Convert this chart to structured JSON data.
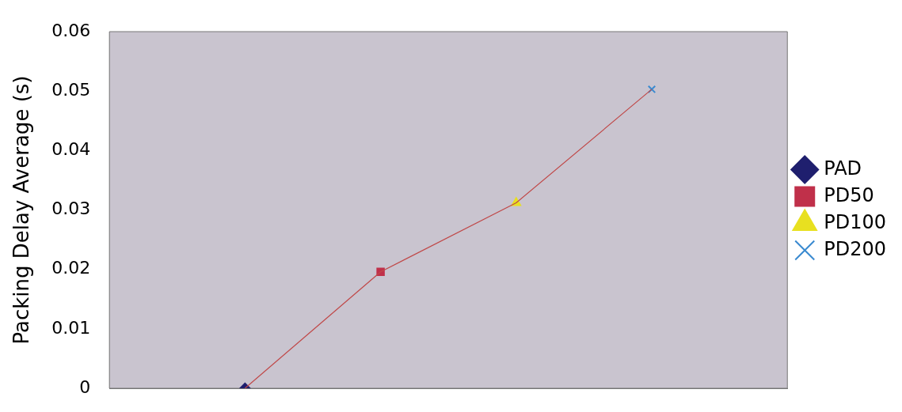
{
  "chart_data": {
    "type": "line",
    "ylabel": "Packing Delay Average (s)",
    "categories": [
      null,
      null,
      null,
      null
    ],
    "ylim": [
      0,
      0.06
    ],
    "yticks": [
      0,
      0.01,
      0.02,
      0.03,
      0.04,
      0.05,
      0.06
    ],
    "grid": false,
    "legend": "right",
    "tick_labels": "y",
    "series": [
      {
        "color": "#c04848",
        "values": [
          0,
          0.0196,
          0.0312,
          0.0503
        ],
        "marker": "none"
      },
      {
        "name": "PAD",
        "type": "scatter",
        "color": "#1f1f6e",
        "marker": "diamond",
        "values": [
          0,
          null,
          null,
          null
        ]
      },
      {
        "name": "PD50",
        "type": "scatter",
        "color": "#c0304a",
        "marker": "square",
        "values": [
          null,
          0.0196,
          null,
          null
        ]
      },
      {
        "name": "PD100",
        "type": "scatter",
        "color": "#e8e020",
        "marker": "triangle",
        "values": [
          null,
          null,
          0.0312,
          null
        ]
      },
      {
        "name": "PD200",
        "type": "scatter",
        "color": "#3a8ad0",
        "marker": "cross",
        "values": [
          null,
          null,
          null,
          0.0503
        ]
      }
    ]
  }
}
